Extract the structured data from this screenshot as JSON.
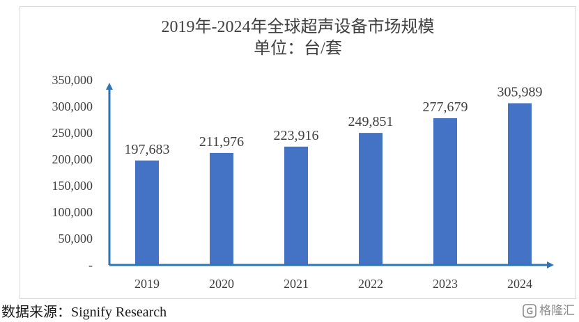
{
  "chart_data": {
    "type": "bar",
    "title": "2019年-2024年全球超声设备市场规模",
    "subtitle": "单位：台/套",
    "categories": [
      "2019",
      "2020",
      "2021",
      "2022",
      "2023",
      "2024"
    ],
    "values": [
      197683,
      211976,
      223916,
      249851,
      277679,
      305989
    ],
    "data_labels": [
      "197,683",
      "211,976",
      "223,916",
      "249,851",
      "277,679",
      "305,989"
    ],
    "yticks": [
      0,
      50000,
      100000,
      150000,
      200000,
      250000,
      300000,
      350000
    ],
    "ytick_labels": [
      "-",
      "50,000",
      "100,000",
      "150,000",
      "200,000",
      "250,000",
      "300,000",
      "350,000"
    ],
    "ylim": [
      0,
      350000
    ],
    "grid": false,
    "legend": "none",
    "colors": {
      "bar": "#4472c4",
      "axis": "#2e75b6"
    }
  },
  "source": "数据来源：Signify Research",
  "watermark": {
    "text": "格隆汇",
    "icon": "gelonghui-logo-icon"
  }
}
